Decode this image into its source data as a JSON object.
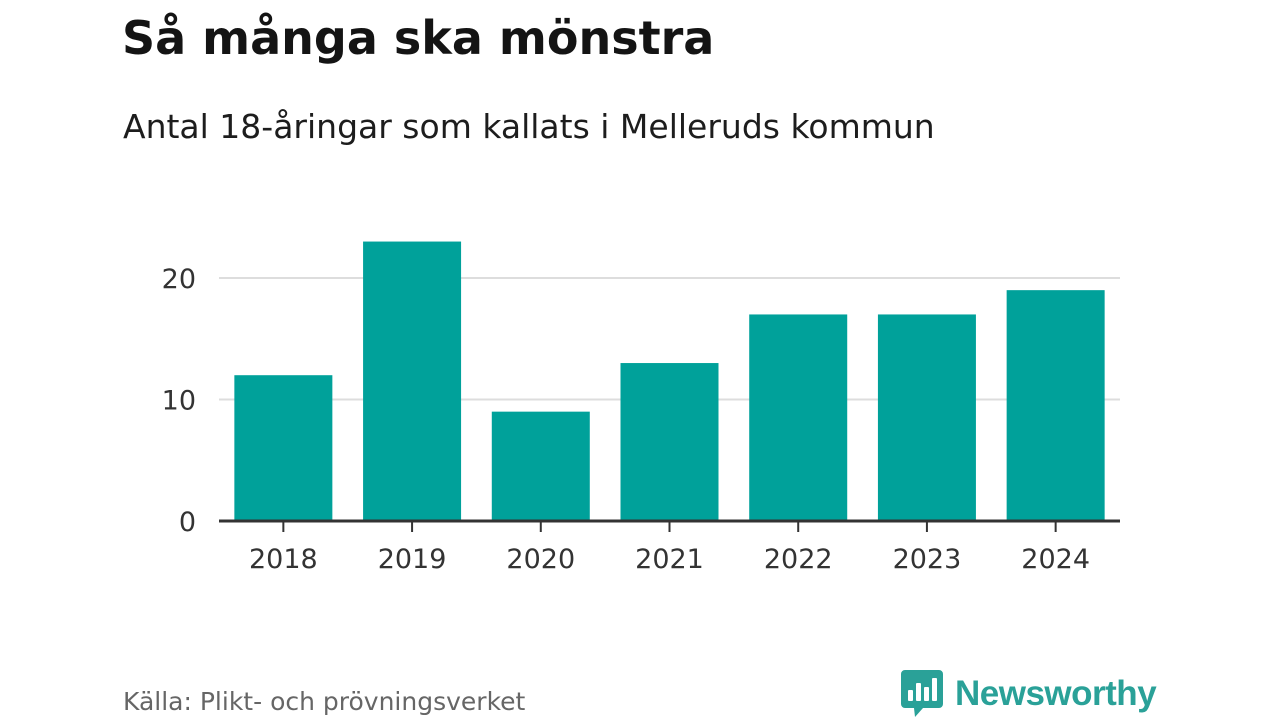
{
  "title": "Så många ska mönstra",
  "subtitle": "Antal 18-åringar som kallats i Melleruds kommun",
  "source": "Källa: Plikt- och prövningsverket",
  "brand": {
    "name": "Newsworthy",
    "icon": "newsworthy-logo-icon",
    "color": "#2aa198"
  },
  "colors": {
    "bar": "#00a19a",
    "grid": "#dddddd",
    "axis": "#333333"
  },
  "chart_data": {
    "type": "bar",
    "categories": [
      "2018",
      "2019",
      "2020",
      "2021",
      "2022",
      "2023",
      "2024"
    ],
    "values": [
      12,
      23,
      9,
      13,
      17,
      17,
      19
    ],
    "ylim": [
      0,
      23
    ],
    "yticks": [
      0,
      10,
      20
    ],
    "xlabel": "",
    "ylabel": "",
    "grid": true,
    "legend": "none"
  }
}
